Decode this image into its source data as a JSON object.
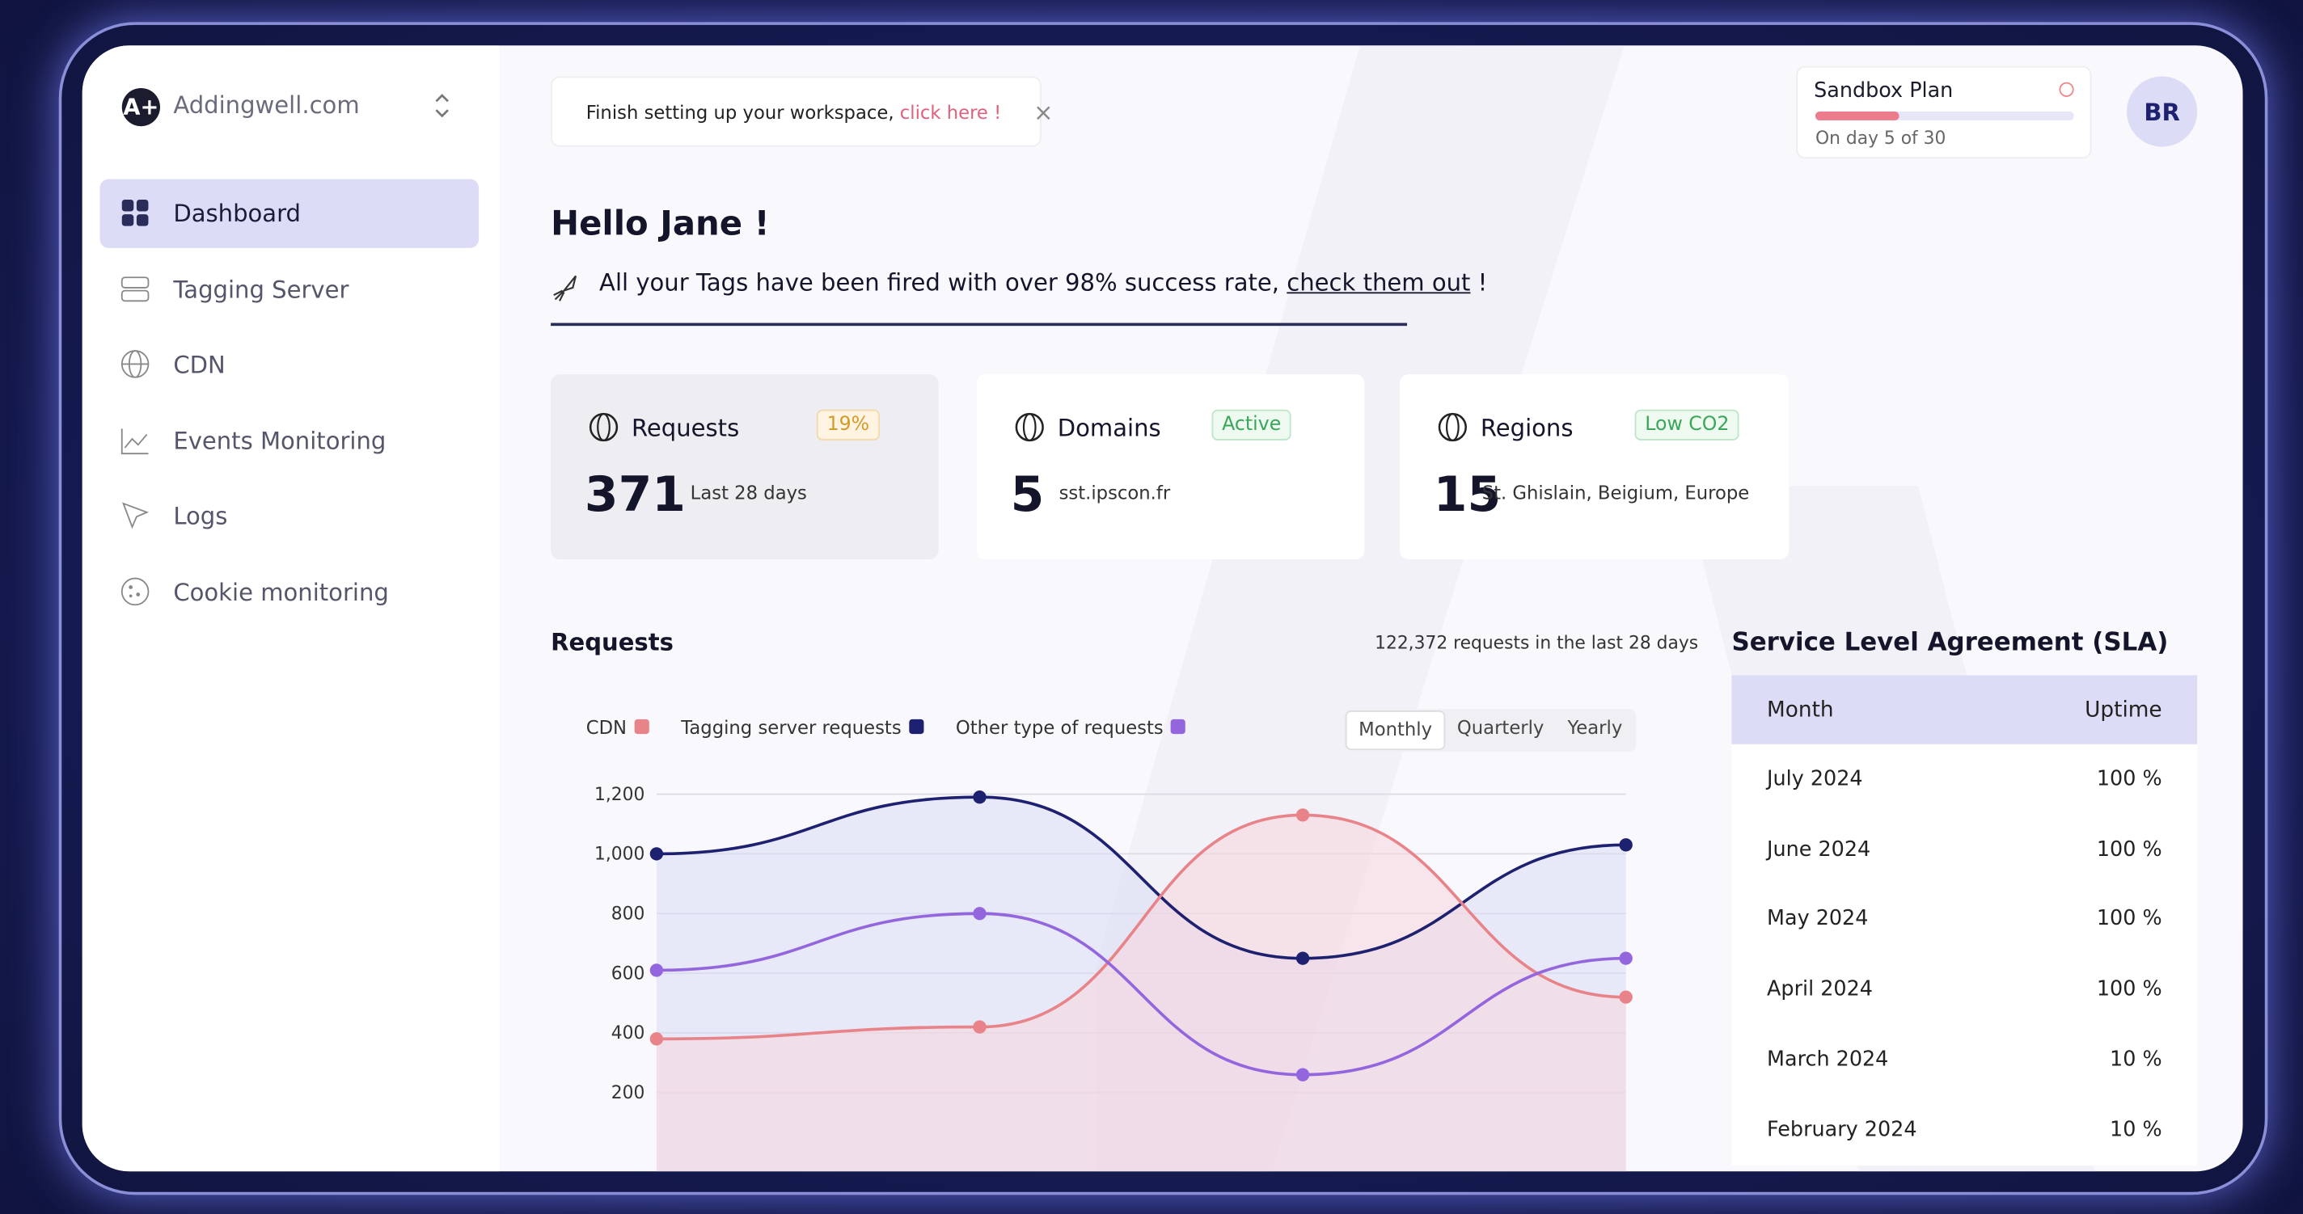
{
  "sidebar": {
    "brand": "Addingwell.com",
    "nav": [
      "Dashboard",
      "Tagging Server",
      "CDN",
      "Events Monitoring",
      "Logs",
      "Cookie monitoring"
    ]
  },
  "banner": {
    "text": "Finish setting up your workspace,",
    "link": "click here !"
  },
  "plan": {
    "title": "Sandbox Plan",
    "status": "On day 5 of 30"
  },
  "avatar": "BR",
  "greeting": {
    "title": "Hello Jane !",
    "message": "All your Tags have been fired with over 98% success rate,",
    "link": "check them out",
    "end": "!"
  },
  "cards": [
    {
      "title": "Requests",
      "badge": "19%",
      "value": "371",
      "detail": "Last 28 days"
    },
    {
      "title": "Domains",
      "badge": "Active",
      "value": "5",
      "detail": "sst.ipscon.fr"
    },
    {
      "title": "Regions",
      "badge": "Low CO2",
      "value": "15",
      "detail": "St. Ghislain, Beigium, Europe"
    }
  ],
  "chart_controls": [
    "Monthly",
    "Quarterly",
    "Yearly"
  ],
  "chart_data": {
    "type": "line",
    "title": "Requests",
    "subtitle": "122,372 requests in the last 28 days",
    "categories": [
      null,
      null,
      null,
      null
    ],
    "series": [
      {
        "name": "CDN",
        "color": "#e8838a",
        "values": [
          380,
          420,
          1130,
          520
        ]
      },
      {
        "name": "Tagging server requests",
        "color": "#1e2070",
        "values": [
          1000,
          1190,
          650,
          1030
        ]
      },
      {
        "name": "Other type of requests",
        "color": "#9466de",
        "values": [
          610,
          800,
          260,
          650
        ]
      }
    ],
    "ylim": [
      0,
      1200
    ],
    "yticks": [
      {
        "value": 1200,
        "label": "1,200"
      },
      {
        "value": 1000,
        "label": "1,000"
      },
      800,
      600,
      400,
      200
    ],
    "grid": true
  },
  "sla": {
    "title": "Service Level Agreement (SLA)",
    "header": [
      "Month",
      "Uptime"
    ],
    "rows": [
      [
        "July 2024",
        "100 %"
      ],
      [
        "June 2024",
        "100 %"
      ],
      [
        "May 2024",
        "100 %"
      ],
      [
        "April 2024",
        "100 %"
      ],
      [
        "March 2024",
        "10 %"
      ],
      [
        "February 2024",
        "10 %"
      ]
    ]
  }
}
